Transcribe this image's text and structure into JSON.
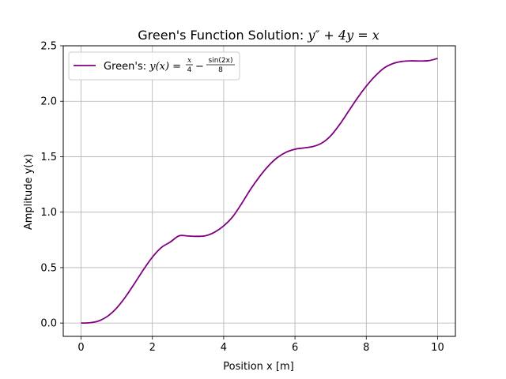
{
  "chart_data": {
    "type": "line",
    "title_prefix": "Green's Function Solution: ",
    "title_math": "y″ + 4y = x",
    "xlabel": "Position x [m]",
    "ylabel": "Amplitude y(x)",
    "xlim": [
      -0.5,
      10.5
    ],
    "ylim": [
      -0.12,
      2.5
    ],
    "xticks": [
      0,
      2,
      4,
      6,
      8,
      10
    ],
    "yticks": [
      0.0,
      0.5,
      1.0,
      1.5,
      2.0,
      2.5
    ],
    "xtick_labels": [
      "0",
      "2",
      "4",
      "6",
      "8",
      "10"
    ],
    "ytick_labels": [
      "0.0",
      "0.5",
      "1.0",
      "1.5",
      "2.0",
      "2.5"
    ],
    "grid": true,
    "legend_position": "top-left",
    "series": [
      {
        "name": "Green's: y(x) = x/4 − sin(2x)/8",
        "legend_prefix": "Green's: ",
        "legend_math": "y(x) =",
        "legend_frac1_num": "x",
        "legend_frac1_den": "4",
        "legend_minus": "−",
        "legend_frac2_num": "sin(2x)",
        "legend_frac2_den": "8",
        "color": "#800080",
        "x": [
          0,
          0.25,
          0.5,
          0.75,
          1,
          1.25,
          1.5,
          1.75,
          2,
          2.25,
          2.5,
          2.75,
          3,
          3.25,
          3.5,
          3.75,
          4,
          4.25,
          4.5,
          4.75,
          5,
          5.25,
          5.5,
          5.75,
          6,
          6.25,
          6.5,
          6.75,
          7,
          7.25,
          7.5,
          7.75,
          8,
          8.25,
          8.5,
          8.75,
          9,
          9.25,
          9.5,
          9.75,
          10
        ],
        "y": [
          0.0,
          0.0026,
          0.0198,
          0.0628,
          0.1363,
          0.2376,
          0.3574,
          0.4818,
          0.5946,
          0.6808,
          0.7302,
          0.7866,
          0.7849,
          0.7819,
          0.7875,
          0.82,
          0.8767,
          0.9575,
          1.0752,
          1.2046,
          1.318,
          1.4153,
          1.4907,
          1.5404,
          1.5677,
          1.5792,
          1.5911,
          1.6224,
          1.6877,
          1.789,
          1.908,
          2.0278,
          2.1353,
          2.2274,
          2.2998,
          2.34,
          2.359,
          2.364,
          2.363,
          2.366,
          2.3863
        ]
      }
    ]
  }
}
